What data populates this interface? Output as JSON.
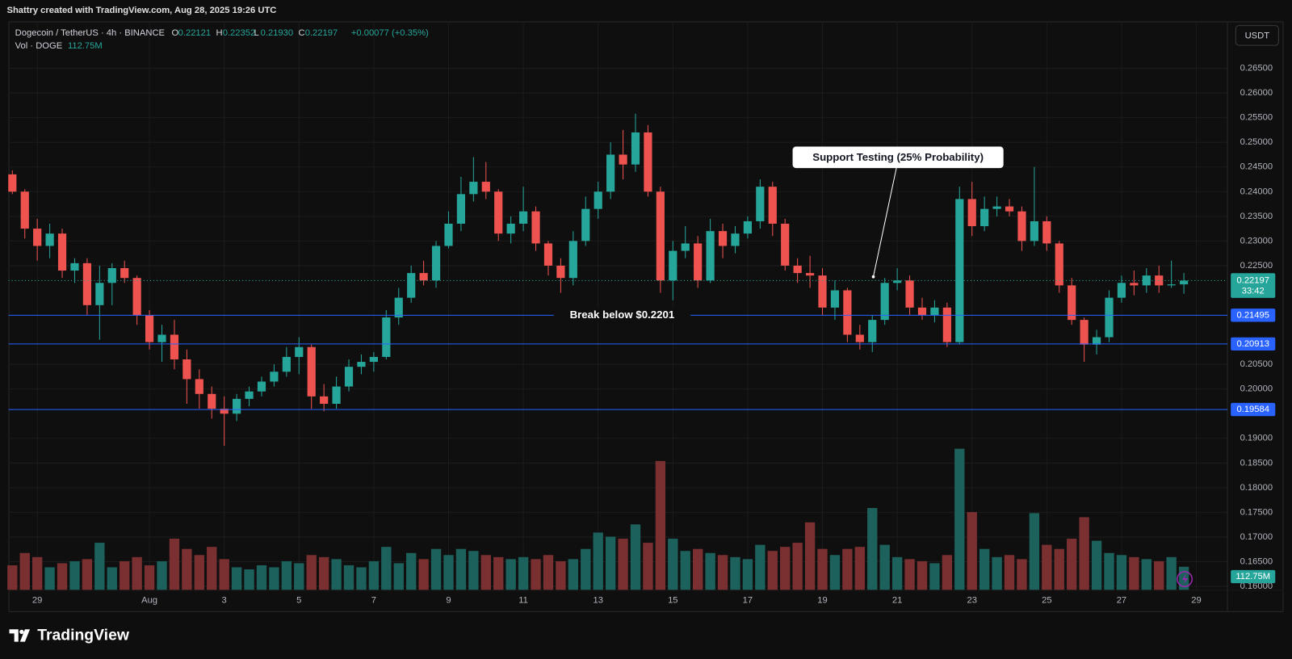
{
  "top_bar": "Shattry created with TradingView.com, Aug 28, 2025 19:26 UTC",
  "brand": "TradingView",
  "chart_data": {
    "type": "candlestick",
    "title": "Dogecoin / TetherUS · 4h · BINANCE",
    "ohlc_legend": [
      {
        "key": "O",
        "text": "0.22121"
      },
      {
        "key": "H",
        "text": "0.22352"
      },
      {
        "key": "L",
        "text": "0.21930"
      },
      {
        "key": "C",
        "text": "0.22197"
      }
    ],
    "change": "+0.00077 (+0.35%)",
    "volume_title": "Vol · DOGE",
    "volume_last_label": "112.75M",
    "currency": "USDT",
    "countdown": "33:42",
    "open": [
      0.2435,
      0.24,
      0.2325,
      0.229,
      0.2315,
      0.224,
      0.2255,
      0.217,
      0.2215,
      0.2245,
      0.2225,
      0.215,
      0.2095,
      0.211,
      0.206,
      0.202,
      0.199,
      0.196,
      0.195,
      0.198,
      0.1995,
      0.2015,
      0.2035,
      0.2065,
      0.2085,
      0.1985,
      0.197,
      0.2005,
      0.2045,
      0.2055,
      0.2065,
      0.2145,
      0.2185,
      0.2235,
      0.222,
      0.229,
      0.2335,
      0.2395,
      0.242,
      0.24,
      0.2315,
      0.2335,
      0.236,
      0.2295,
      0.225,
      0.2225,
      0.23,
      0.2365,
      0.24,
      0.2475,
      0.2455,
      0.252,
      0.24,
      0.222,
      0.228,
      0.2295,
      0.222,
      0.232,
      0.229,
      0.2315,
      0.234,
      0.241,
      0.2335,
      0.225,
      0.2235,
      0.223,
      0.2165,
      0.22,
      0.211,
      0.2095,
      0.214,
      0.2215,
      0.222,
      0.2165,
      0.215,
      0.2165,
      0.2095,
      0.2385,
      0.233,
      0.2365,
      0.237,
      0.236,
      0.23,
      0.234,
      0.2295,
      0.221,
      0.214,
      0.209,
      0.2105,
      0.2185,
      0.2215,
      0.221,
      0.223,
      0.221,
      0.22121
    ],
    "high": [
      0.2443,
      0.2405,
      0.2345,
      0.2335,
      0.2325,
      0.2265,
      0.2265,
      0.225,
      0.2255,
      0.226,
      0.223,
      0.216,
      0.213,
      0.214,
      0.208,
      0.204,
      0.2005,
      0.1985,
      0.199,
      0.2005,
      0.2025,
      0.205,
      0.2085,
      0.2105,
      0.209,
      0.201,
      0.2025,
      0.206,
      0.207,
      0.2075,
      0.216,
      0.2205,
      0.225,
      0.226,
      0.23,
      0.236,
      0.243,
      0.247,
      0.246,
      0.2405,
      0.235,
      0.241,
      0.237,
      0.23,
      0.2265,
      0.232,
      0.239,
      0.242,
      0.25,
      0.2525,
      0.2558,
      0.2535,
      0.241,
      0.23,
      0.233,
      0.231,
      0.2345,
      0.2335,
      0.233,
      0.235,
      0.2425,
      0.242,
      0.2345,
      0.2265,
      0.227,
      0.2245,
      0.222,
      0.2205,
      0.213,
      0.215,
      0.2225,
      0.2245,
      0.223,
      0.2185,
      0.218,
      0.2175,
      0.241,
      0.242,
      0.239,
      0.239,
      0.2385,
      0.237,
      0.245,
      0.235,
      0.23,
      0.2225,
      0.2145,
      0.212,
      0.22,
      0.223,
      0.224,
      0.2245,
      0.225,
      0.226,
      0.22352
    ],
    "low": [
      0.2395,
      0.2305,
      0.226,
      0.2265,
      0.2225,
      0.2215,
      0.215,
      0.21,
      0.217,
      0.2215,
      0.213,
      0.208,
      0.2055,
      0.204,
      0.197,
      0.196,
      0.194,
      0.1885,
      0.1935,
      0.1965,
      0.1985,
      0.2005,
      0.2025,
      0.203,
      0.196,
      0.1955,
      0.196,
      0.1995,
      0.203,
      0.2035,
      0.206,
      0.213,
      0.2175,
      0.221,
      0.2205,
      0.2285,
      0.232,
      0.238,
      0.2385,
      0.23,
      0.2295,
      0.232,
      0.228,
      0.223,
      0.2195,
      0.221,
      0.229,
      0.2345,
      0.2385,
      0.2425,
      0.244,
      0.239,
      0.2195,
      0.218,
      0.2265,
      0.2205,
      0.2215,
      0.2265,
      0.2275,
      0.2305,
      0.2325,
      0.231,
      0.224,
      0.2215,
      0.2205,
      0.215,
      0.214,
      0.2095,
      0.208,
      0.2075,
      0.213,
      0.22,
      0.215,
      0.214,
      0.2135,
      0.2085,
      0.209,
      0.231,
      0.232,
      0.235,
      0.235,
      0.228,
      0.229,
      0.228,
      0.2195,
      0.213,
      0.2055,
      0.207,
      0.2095,
      0.2175,
      0.219,
      0.2195,
      0.2195,
      0.2205,
      0.2193
    ],
    "close": [
      0.24,
      0.2325,
      0.229,
      0.2315,
      0.224,
      0.2255,
      0.217,
      0.2215,
      0.2245,
      0.2225,
      0.215,
      0.2095,
      0.211,
      0.206,
      0.202,
      0.199,
      0.196,
      0.195,
      0.198,
      0.1995,
      0.2015,
      0.2035,
      0.2065,
      0.2085,
      0.1985,
      0.197,
      0.2005,
      0.2045,
      0.2055,
      0.2065,
      0.2145,
      0.2185,
      0.2235,
      0.222,
      0.229,
      0.2335,
      0.2395,
      0.242,
      0.24,
      0.2315,
      0.2335,
      0.236,
      0.2295,
      0.225,
      0.2225,
      0.23,
      0.2365,
      0.24,
      0.2475,
      0.2455,
      0.252,
      0.24,
      0.222,
      0.228,
      0.2295,
      0.222,
      0.232,
      0.229,
      0.2315,
      0.234,
      0.241,
      0.2335,
      0.225,
      0.2235,
      0.223,
      0.2165,
      0.22,
      0.211,
      0.2095,
      0.214,
      0.2215,
      0.222,
      0.2165,
      0.215,
      0.2165,
      0.2095,
      0.2385,
      0.233,
      0.2365,
      0.237,
      0.236,
      0.23,
      0.234,
      0.2295,
      0.221,
      0.214,
      0.209,
      0.2105,
      0.2185,
      0.2215,
      0.221,
      0.223,
      0.221,
      0.2212,
      0.22197
    ],
    "volume": [
      120,
      180,
      160,
      110,
      130,
      140,
      150,
      230,
      110,
      140,
      160,
      120,
      140,
      250,
      200,
      170,
      210,
      150,
      110,
      100,
      120,
      110,
      140,
      130,
      170,
      160,
      150,
      120,
      110,
      140,
      210,
      130,
      180,
      150,
      200,
      170,
      200,
      190,
      170,
      160,
      150,
      160,
      150,
      170,
      140,
      150,
      200,
      280,
      260,
      250,
      320,
      230,
      630,
      250,
      190,
      200,
      180,
      170,
      160,
      150,
      220,
      190,
      210,
      230,
      330,
      200,
      170,
      200,
      210,
      400,
      220,
      160,
      150,
      140,
      130,
      170,
      690,
      380,
      200,
      160,
      170,
      150,
      375,
      220,
      200,
      250,
      355,
      240,
      180,
      170,
      160,
      150,
      140,
      160,
      112.75
    ],
    "up_color": "#26a69a",
    "down_color": "#ef5350",
    "volume_up_color": "#1d615c",
    "volume_down_color": "#7a2f31",
    "xlim": [
      -0.31,
      97.5
    ],
    "xticks": [
      {
        "value": 2,
        "label": "29"
      },
      {
        "value": 11,
        "label": "Aug"
      },
      {
        "value": 17,
        "label": "3"
      },
      {
        "value": 23,
        "label": "5"
      },
      {
        "value": 29,
        "label": "7"
      },
      {
        "value": 35,
        "label": "9"
      },
      {
        "value": 41,
        "label": "11"
      },
      {
        "value": 47,
        "label": "13"
      },
      {
        "value": 53,
        "label": "15"
      },
      {
        "value": 59,
        "label": "17"
      },
      {
        "value": 65,
        "label": "19"
      },
      {
        "value": 71,
        "label": "21"
      },
      {
        "value": 77,
        "label": "23"
      },
      {
        "value": 83,
        "label": "25"
      },
      {
        "value": 89,
        "label": "27"
      },
      {
        "value": 95,
        "label": "29"
      }
    ],
    "ylim": [
      0.1593,
      0.2745
    ],
    "yticks": [
      {
        "value": 0.16,
        "label": "0.16000"
      },
      {
        "value": 0.165,
        "label": "0.16500"
      },
      {
        "value": 0.17,
        "label": "0.17000"
      },
      {
        "value": 0.175,
        "label": "0.17500"
      },
      {
        "value": 0.18,
        "label": "0.18000"
      },
      {
        "value": 0.185,
        "label": "0.18500"
      },
      {
        "value": 0.19,
        "label": "0.19000"
      },
      {
        "value": 0.2,
        "label": "0.20000"
      },
      {
        "value": 0.205,
        "label": "0.20500"
      },
      {
        "value": 0.225,
        "label": "0.22500"
      },
      {
        "value": 0.23,
        "label": "0.23000"
      },
      {
        "value": 0.235,
        "label": "0.23500"
      },
      {
        "value": 0.24,
        "label": "0.24000"
      },
      {
        "value": 0.245,
        "label": "0.24500"
      },
      {
        "value": 0.25,
        "label": "0.25000"
      },
      {
        "value": 0.255,
        "label": "0.25500"
      },
      {
        "value": 0.26,
        "label": "0.26000"
      },
      {
        "value": 0.265,
        "label": "0.26500"
      }
    ],
    "volume_ylim": [
      0,
      2780
    ],
    "levels": [
      0.21495,
      0.20913,
      0.19584
    ],
    "level_color": "#2962ff",
    "annotations": [
      "Break below $0.2201",
      "Support Testing (25% Probability)"
    ],
    "grid": true
  }
}
